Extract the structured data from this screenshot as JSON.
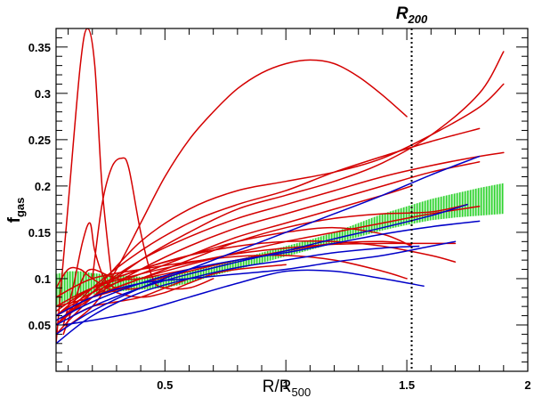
{
  "chart_data": {
    "type": "line",
    "title": "",
    "xlabel": "R/R",
    "xlabel_sub": "500",
    "ylabel": "f",
    "ylabel_sub": "gas",
    "xlim": [
      0.05,
      2.0
    ],
    "ylim": [
      0.0,
      0.37
    ],
    "xticks": [
      0.5,
      1.0,
      1.5,
      2.0
    ],
    "xtick_labels": [
      "0.5",
      "1",
      "1.5",
      "2"
    ],
    "yticks": [
      0.05,
      0.1,
      0.15,
      0.2,
      0.25,
      0.3,
      0.35
    ],
    "ytick_labels": [
      "0.05",
      "0.1",
      "0.15",
      "0.2",
      "0.25",
      "0.3",
      "0.35"
    ],
    "grid": false,
    "legend": "none",
    "annotation": {
      "label": "R",
      "label_sub": "200",
      "x": 1.52
    },
    "colors": {
      "red": "#d40000",
      "blue": "#0000c8",
      "green": "#2fd42f",
      "axes": "#000000"
    },
    "band": {
      "color": "green",
      "x": [
        0.05,
        0.1,
        0.15,
        0.2,
        0.3,
        0.4,
        0.5,
        0.6,
        0.7,
        0.8,
        0.9,
        1.0,
        1.1,
        1.2,
        1.3,
        1.4,
        1.5,
        1.6,
        1.7,
        1.8,
        1.9
      ],
      "upper": [
        0.105,
        0.108,
        0.108,
        0.106,
        0.104,
        0.102,
        0.103,
        0.108,
        0.113,
        0.12,
        0.128,
        0.135,
        0.142,
        0.15,
        0.16,
        0.17,
        0.178,
        0.186,
        0.192,
        0.198,
        0.203
      ],
      "lower": [
        0.07,
        0.075,
        0.08,
        0.083,
        0.086,
        0.088,
        0.09,
        0.095,
        0.103,
        0.11,
        0.117,
        0.124,
        0.131,
        0.138,
        0.145,
        0.152,
        0.158,
        0.163,
        0.166,
        0.168,
        0.17
      ]
    },
    "series": [
      {
        "color": "red",
        "x": [
          0.05,
          0.1,
          0.15,
          0.18,
          0.21,
          0.24,
          0.28
        ],
        "y": [
          0.03,
          0.18,
          0.33,
          0.37,
          0.33,
          0.2,
          0.1
        ]
      },
      {
        "color": "red",
        "x": [
          0.2,
          0.24,
          0.28,
          0.32,
          0.35,
          0.4,
          0.45,
          0.5,
          0.6,
          0.7
        ],
        "y": [
          0.1,
          0.18,
          0.22,
          0.23,
          0.22,
          0.15,
          0.1,
          0.09,
          0.09,
          0.1
        ]
      },
      {
        "color": "red",
        "x": [
          0.08,
          0.12,
          0.16,
          0.19,
          0.21,
          0.25,
          0.3,
          0.4,
          0.5
        ],
        "y": [
          0.05,
          0.09,
          0.14,
          0.16,
          0.13,
          0.1,
          0.09,
          0.09,
          0.1
        ]
      },
      {
        "color": "red",
        "x": [
          0.05,
          0.2,
          0.3,
          0.4,
          0.5,
          0.6,
          0.7,
          0.8,
          0.9,
          1.0,
          1.1,
          1.2,
          1.3,
          1.4,
          1.5
        ],
        "y": [
          0.04,
          0.07,
          0.11,
          0.16,
          0.21,
          0.25,
          0.28,
          0.305,
          0.322,
          0.332,
          0.336,
          0.332,
          0.318,
          0.298,
          0.275
        ]
      },
      {
        "color": "red",
        "x": [
          0.05,
          0.2,
          0.4,
          0.6,
          0.8,
          1.0,
          1.2,
          1.4,
          1.6,
          1.8,
          1.9
        ],
        "y": [
          0.04,
          0.08,
          0.12,
          0.15,
          0.175,
          0.19,
          0.205,
          0.225,
          0.255,
          0.3,
          0.345
        ]
      },
      {
        "color": "red",
        "x": [
          0.05,
          0.2,
          0.4,
          0.6,
          0.8,
          1.0,
          1.2,
          1.4,
          1.6,
          1.8,
          1.9
        ],
        "y": [
          0.05,
          0.085,
          0.14,
          0.175,
          0.195,
          0.205,
          0.215,
          0.23,
          0.255,
          0.285,
          0.31
        ]
      },
      {
        "color": "red",
        "x": [
          0.05,
          0.2,
          0.4,
          0.6,
          0.8,
          1.0,
          1.2,
          1.4,
          1.6,
          1.8
        ],
        "y": [
          0.05,
          0.09,
          0.13,
          0.16,
          0.18,
          0.195,
          0.215,
          0.232,
          0.248,
          0.262
        ]
      },
      {
        "color": "red",
        "x": [
          0.05,
          0.2,
          0.4,
          0.6,
          0.8,
          1.0,
          1.2,
          1.4,
          1.6,
          1.8,
          1.9
        ],
        "y": [
          0.05,
          0.085,
          0.12,
          0.145,
          0.165,
          0.18,
          0.195,
          0.21,
          0.222,
          0.232,
          0.236
        ]
      },
      {
        "color": "red",
        "x": [
          0.05,
          0.2,
          0.4,
          0.6,
          0.8,
          1.0,
          1.2,
          1.4,
          1.6,
          1.8
        ],
        "y": [
          0.05,
          0.08,
          0.11,
          0.135,
          0.155,
          0.17,
          0.185,
          0.2,
          0.215,
          0.226
        ]
      },
      {
        "color": "red",
        "x": [
          0.05,
          0.2,
          0.4,
          0.6,
          0.8,
          1.0,
          1.2,
          1.4,
          1.52
        ],
        "y": [
          0.06,
          0.085,
          0.105,
          0.125,
          0.145,
          0.16,
          0.175,
          0.19,
          0.2
        ]
      },
      {
        "color": "red",
        "x": [
          0.05,
          0.2,
          0.4,
          0.6,
          0.8,
          1.0,
          1.2,
          1.4,
          1.6,
          1.75
        ],
        "y": [
          0.06,
          0.08,
          0.1,
          0.12,
          0.14,
          0.155,
          0.165,
          0.17,
          0.172,
          0.18
        ]
      },
      {
        "color": "red",
        "x": [
          0.05,
          0.2,
          0.4,
          0.6,
          0.8,
          1.0,
          1.2,
          1.4,
          1.52
        ],
        "y": [
          0.06,
          0.09,
          0.11,
          0.125,
          0.14,
          0.15,
          0.155,
          0.148,
          0.135
        ]
      },
      {
        "color": "red",
        "x": [
          0.05,
          0.2,
          0.4,
          0.6,
          0.8,
          1.0,
          1.2,
          1.4,
          1.6,
          1.7
        ],
        "y": [
          0.07,
          0.09,
          0.105,
          0.117,
          0.127,
          0.133,
          0.137,
          0.138,
          0.138,
          0.138
        ]
      },
      {
        "color": "red",
        "x": [
          0.05,
          0.2,
          0.4,
          0.6,
          0.8,
          1.0,
          1.2,
          1.4,
          1.52
        ],
        "y": [
          0.07,
          0.08,
          0.095,
          0.108,
          0.12,
          0.13,
          0.138,
          0.14,
          0.137
        ]
      },
      {
        "color": "red",
        "x": [
          0.05,
          0.2,
          0.4,
          0.6,
          0.8,
          1.0,
          1.2,
          1.4,
          1.6,
          1.7
        ],
        "y": [
          0.065,
          0.09,
          0.11,
          0.125,
          0.135,
          0.14,
          0.14,
          0.135,
          0.125,
          0.118
        ]
      },
      {
        "color": "red",
        "x": [
          0.05,
          0.2,
          0.4,
          0.6,
          0.8,
          1.0,
          1.2,
          1.4,
          1.5
        ],
        "y": [
          0.08,
          0.1,
          0.11,
          0.118,
          0.124,
          0.125,
          0.12,
          0.108,
          0.1
        ]
      },
      {
        "color": "red",
        "x": [
          0.05,
          0.2,
          0.4,
          0.6,
          0.8,
          1.0,
          1.2,
          1.4,
          1.6,
          1.8
        ],
        "y": [
          0.06,
          0.08,
          0.1,
          0.115,
          0.128,
          0.14,
          0.15,
          0.16,
          0.17,
          0.178
        ]
      },
      {
        "color": "red",
        "x": [
          0.05,
          0.1,
          0.15,
          0.2,
          0.3,
          0.4,
          0.5,
          0.6,
          0.7,
          0.8,
          1.0
        ],
        "y": [
          0.09,
          0.11,
          0.11,
          0.1,
          0.085,
          0.08,
          0.085,
          0.095,
          0.105,
          0.11,
          0.115
        ]
      },
      {
        "color": "red",
        "x": [
          0.08,
          0.12,
          0.16,
          0.2,
          0.3,
          0.4,
          0.5,
          0.6,
          0.8
        ],
        "y": [
          0.04,
          0.07,
          0.1,
          0.11,
          0.1,
          0.1,
          0.105,
          0.11,
          0.12
        ]
      },
      {
        "color": "red",
        "x": [
          0.12,
          0.2,
          0.3,
          0.4,
          0.5,
          0.6
        ],
        "y": [
          0.06,
          0.07,
          0.075,
          0.08,
          0.09,
          0.1
        ]
      },
      {
        "color": "blue",
        "x": [
          0.05,
          0.2,
          0.4,
          0.6,
          0.8,
          1.0,
          1.2,
          1.4,
          1.6,
          1.8
        ],
        "y": [
          0.04,
          0.065,
          0.09,
          0.11,
          0.13,
          0.15,
          0.17,
          0.19,
          0.212,
          0.232
        ]
      },
      {
        "color": "blue",
        "x": [
          0.05,
          0.2,
          0.4,
          0.6,
          0.8,
          1.0,
          1.2,
          1.4,
          1.6,
          1.75
        ],
        "y": [
          0.05,
          0.07,
          0.09,
          0.105,
          0.118,
          0.13,
          0.143,
          0.155,
          0.168,
          0.18
        ]
      },
      {
        "color": "blue",
        "x": [
          0.05,
          0.2,
          0.4,
          0.6,
          0.8,
          1.0,
          1.2,
          1.4,
          1.6,
          1.8
        ],
        "y": [
          0.055,
          0.075,
          0.095,
          0.11,
          0.12,
          0.128,
          0.138,
          0.148,
          0.156,
          0.162
        ]
      },
      {
        "color": "blue",
        "x": [
          0.05,
          0.2,
          0.4,
          0.6,
          0.8,
          1.0,
          1.2,
          1.4,
          1.6,
          1.7
        ],
        "y": [
          0.06,
          0.08,
          0.095,
          0.1,
          0.105,
          0.11,
          0.118,
          0.125,
          0.135,
          0.14
        ]
      },
      {
        "color": "blue",
        "x": [
          0.08,
          0.2,
          0.4,
          0.6,
          0.8,
          1.0,
          1.2,
          1.4,
          1.57
        ],
        "y": [
          0.05,
          0.055,
          0.065,
          0.08,
          0.095,
          0.108,
          0.108,
          0.1,
          0.092
        ]
      },
      {
        "color": "blue",
        "x": [
          0.05,
          0.2,
          0.4,
          0.6,
          0.8,
          1.0,
          1.2,
          1.4,
          1.55
        ],
        "y": [
          0.03,
          0.06,
          0.085,
          0.1,
          0.112,
          0.12,
          0.128,
          0.133,
          0.135
        ]
      }
    ]
  }
}
